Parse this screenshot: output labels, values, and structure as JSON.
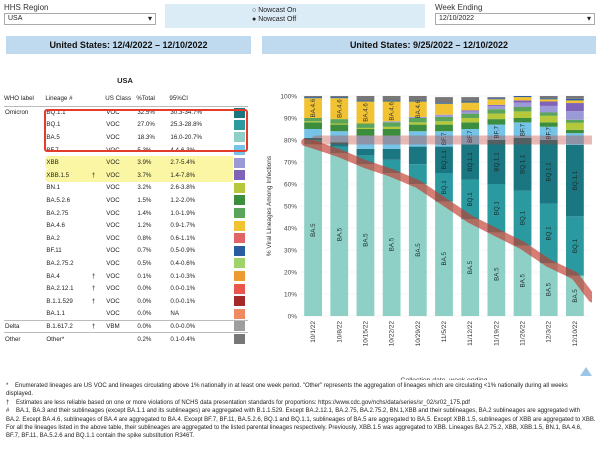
{
  "filters": {
    "region_label": "HHS Region",
    "region_value": "USA",
    "nowcast_on": "Nowcast On",
    "nowcast_off": "Nowcast Off",
    "week_label": "Week Ending",
    "week_value": "12/10/2022"
  },
  "left_title": "United States: 12/4/2022 – 12/10/2022",
  "right_title": "United States: 9/25/2022 – 12/10/2022",
  "table": {
    "region": "USA",
    "headers": {
      "who": "WHO label",
      "lineage": "Lineage #",
      "class": "US Class",
      "pct": "%Total",
      "ci": "95%CI"
    },
    "rows": [
      {
        "who": "Omicron",
        "lineage": "BQ.1.1",
        "dagger": "",
        "cls": "VOC",
        "pct": "32.5%",
        "ci": "30.3-34.7%",
        "color": "#1a7680"
      },
      {
        "who": "",
        "lineage": "BQ.1",
        "dagger": "",
        "cls": "VOC",
        "pct": "27.0%",
        "ci": "25.3-28.8%",
        "color": "#2a9aa0"
      },
      {
        "who": "",
        "lineage": "BA.5",
        "dagger": "",
        "cls": "VOC",
        "pct": "18.3%",
        "ci": "16.0-20.7%",
        "color": "#8fd0c6"
      },
      {
        "who": "",
        "lineage": "BF.7",
        "dagger": "",
        "cls": "VOC",
        "pct": "5.3%",
        "ci": "4.4-6.3%",
        "color": "#76c3e8"
      },
      {
        "who": "",
        "lineage": "XBB",
        "dagger": "",
        "cls": "VOC",
        "pct": "3.9%",
        "ci": "2.7-5.4%",
        "color": "#9c9ad6",
        "hl": true
      },
      {
        "who": "",
        "lineage": "XBB.1.5",
        "dagger": "†",
        "cls": "VOC",
        "pct": "3.7%",
        "ci": "1.4-7.8%",
        "color": "#7e63b8",
        "hl": true
      },
      {
        "who": "",
        "lineage": "BN.1",
        "dagger": "",
        "cls": "VOC",
        "pct": "3.2%",
        "ci": "2.6-3.8%",
        "color": "#b5c73a"
      },
      {
        "who": "",
        "lineage": "BA.5.2.6",
        "dagger": "",
        "cls": "VOC",
        "pct": "1.5%",
        "ci": "1.2-2.0%",
        "color": "#3d8d3e"
      },
      {
        "who": "",
        "lineage": "BA.2.75",
        "dagger": "",
        "cls": "VOC",
        "pct": "1.4%",
        "ci": "1.0-1.9%",
        "color": "#5aa55a"
      },
      {
        "who": "",
        "lineage": "BA.4.6",
        "dagger": "",
        "cls": "VOC",
        "pct": "1.2%",
        "ci": "0.9-1.7%",
        "color": "#f1c232"
      },
      {
        "who": "",
        "lineage": "BA.2",
        "dagger": "",
        "cls": "VOC",
        "pct": "0.8%",
        "ci": "0.6-1.1%",
        "color": "#e06666"
      },
      {
        "who": "",
        "lineage": "BF.11",
        "dagger": "",
        "cls": "VOC",
        "pct": "0.7%",
        "ci": "0.5-0.9%",
        "color": "#2a5d9f"
      },
      {
        "who": "",
        "lineage": "BA.2.75.2",
        "dagger": "",
        "cls": "VOC",
        "pct": "0.5%",
        "ci": "0.4-0.6%",
        "color": "#9fd26b"
      },
      {
        "who": "",
        "lineage": "BA.4",
        "dagger": "†",
        "cls": "VOC",
        "pct": "0.1%",
        "ci": "0.1-0.3%",
        "color": "#ee9a33"
      },
      {
        "who": "",
        "lineage": "BA.2.12.1",
        "dagger": "†",
        "cls": "VOC",
        "pct": "0.0%",
        "ci": "0.0-0.1%",
        "color": "#e8564c"
      },
      {
        "who": "",
        "lineage": "B.1.1.529",
        "dagger": "†",
        "cls": "VOC",
        "pct": "0.0%",
        "ci": "0.0-0.1%",
        "color": "#a42a2a"
      },
      {
        "who": "",
        "lineage": "BA.1.1",
        "dagger": "",
        "cls": "VOC",
        "pct": "0.0%",
        "ci": "NA",
        "color": "#f08a62"
      },
      {
        "who": "Delta",
        "lineage": "B.1.617.2",
        "dagger": "†",
        "cls": "VBM",
        "pct": "0.0%",
        "ci": "0.0-0.0%",
        "color": "#9e9e9e",
        "sep": true
      },
      {
        "who": "Other",
        "lineage": "Other*",
        "dagger": "",
        "cls": "",
        "pct": "0.2%",
        "ci": "0.1-0.4%",
        "color": "#777777",
        "sep": true
      }
    ]
  },
  "notes": [
    "*    Enumerated lineages are US VOC and lineages circulating above 1% nationally in at least one week period. \"Other\" represents the aggregation of lineages which are circulating <1% nationally during all weeks displayed.",
    "†    Estimates are less reliable based on one or more violations of NCHS data presentation standards for proportions: https://www.cdc.gov/nchs/data/series/sr_02/sr02_175.pdf",
    "#    BA.1, BA.3 and their sublineages (except BA.1.1 and its sublineages) are aggregated with B.1.1.529. Except BA.2.12.1, BA.2.75, BA.2.75.2, BN.1,XBB and their sublineages, BA.2 sublineages are aggregated with BA.2. Except BA.4.6, sublineages of BA.4 are aggregated to BA.4. Except BF.7, BF.11, BA.5.2.6, BQ.1 and BQ.1.1, sublineages of BA.5 are aggregated to BA.5. Except XBB.1.5, sublineages of XBB are aggregated to XBB. For all the lineages listed in the above table, their sublineages are aggregated to the listed parental lineages respectively. Previously, XBB.1.5 was aggregated to XBB. Lineages BA.2.75.2, XBB, XBB.1.5, BN.1, BA.4.6, BF.7, BF.11, BA.5.2.6 and BQ.1.1 contain the spike substitution R346T."
  ],
  "chart_data": {
    "type": "bar",
    "stacked": true,
    "ylabel": "% Viral Lineages Among Infections",
    "xlabel": "Collection date, week ending",
    "ylim": [
      0,
      100
    ],
    "yticks": [
      "0%",
      "10%",
      "20%",
      "30%",
      "40%",
      "50%",
      "60%",
      "70%",
      "80%",
      "90%",
      "100%"
    ],
    "categories": [
      "10/1/22",
      "10/8/22",
      "10/15/22",
      "10/22/22",
      "10/29/22",
      "11/5/22",
      "11/12/22",
      "11/19/22",
      "11/26/22",
      "12/3/22",
      "12/10/22"
    ],
    "series": [
      {
        "name": "BA.5",
        "color": "#8fd0c6",
        "values": [
          78,
          74,
          69,
          65,
          60,
          52,
          44,
          38,
          32,
          24,
          18.3
        ]
      },
      {
        "name": "BQ.1",
        "color": "#2a9aa0",
        "values": [
          2,
          3,
          4,
          6,
          9,
          13,
          18,
          22,
          25,
          27,
          27
        ]
      },
      {
        "name": "BQ.1.1",
        "color": "#1a7680",
        "values": [
          1,
          2,
          3,
          5,
          8,
          12,
          16,
          20,
          24,
          29,
          32.5
        ]
      },
      {
        "name": "BF.7",
        "color": "#76c3e8",
        "values": [
          4,
          5,
          6,
          6,
          7,
          7,
          7,
          7,
          7,
          6,
          5.3
        ]
      },
      {
        "name": "BA.5.2.6",
        "color": "#3d8d3e",
        "values": [
          3,
          3,
          3,
          3,
          3,
          3,
          3,
          2.5,
          2,
          2,
          1.5
        ]
      },
      {
        "name": "BN.1",
        "color": "#b5c73a",
        "values": [
          0.5,
          0.5,
          0.5,
          1,
          1,
          1.5,
          2,
          2.5,
          3,
          3,
          3.2
        ]
      },
      {
        "name": "BA.2.75",
        "color": "#5aa55a",
        "values": [
          1.5,
          2,
          2,
          2,
          2,
          2,
          2,
          2,
          2,
          1.5,
          1.4
        ]
      },
      {
        "name": "XBB",
        "color": "#9c9ad6",
        "values": [
          0,
          0,
          0,
          0.5,
          0.5,
          1,
          1,
          1.5,
          2,
          3,
          3.9
        ]
      },
      {
        "name": "XBB.1.5",
        "color": "#7e63b8",
        "values": [
          0,
          0,
          0,
          0,
          0,
          0,
          0.5,
          0.5,
          1,
          2,
          3.7
        ]
      },
      {
        "name": "BA.4.6",
        "color": "#f1c232",
        "values": [
          9,
          9.5,
          10,
          9,
          7,
          5,
          3.5,
          2.5,
          1.5,
          1,
          1.2
        ]
      },
      {
        "name": "BF.11",
        "color": "#2a5d9f",
        "values": [
          0.5,
          0.5,
          0.5,
          0.5,
          0.5,
          0.5,
          0.5,
          0.5,
          0.5,
          0.5,
          0.7
        ]
      },
      {
        "name": "Other",
        "color": "#777777",
        "values": [
          0.5,
          0.5,
          2,
          2,
          2,
          2.5,
          2,
          0.5,
          0,
          1,
          1.3
        ]
      }
    ],
    "bar_labels": [
      [
        "BA.5",
        "",
        "",
        "",
        "BA.4.6"
      ],
      [
        "BA.5",
        "",
        "",
        "",
        "BA.4.6"
      ],
      [
        "BA.5",
        "",
        "",
        "",
        "BA.4.6"
      ],
      [
        "BA.5",
        "",
        "",
        "",
        "BA.4.6"
      ],
      [
        "BA.5",
        "",
        "",
        "",
        "BA.4.6"
      ],
      [
        "BA.5",
        "BQ.1",
        "BQ.1.1",
        "BF.7",
        ""
      ],
      [
        "BA.5",
        "BQ.1",
        "BQ.1.1",
        "BF.7",
        ""
      ],
      [
        "BA.5",
        "BQ.1",
        "BQ.1.1",
        "BF.7",
        ""
      ],
      [
        "BA.5",
        "BQ.1",
        "BQ.1.1",
        "BF.7",
        ""
      ],
      [
        "BA.5",
        "BQ.1",
        "BQ.1.1",
        "BF.7",
        ""
      ],
      [
        "BA.5",
        "BQ.1",
        "BQ.1.1",
        "",
        ""
      ]
    ]
  }
}
